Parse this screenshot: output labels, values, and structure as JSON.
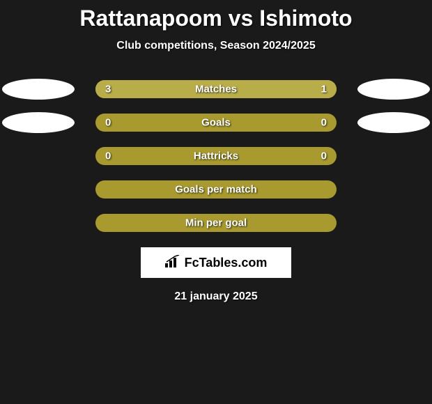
{
  "title": "Rattanapoom vs Ishimoto",
  "subtitle": "Club competitions, Season 2024/2025",
  "date": "21 january 2025",
  "logo_text": "FcTables.com",
  "colors": {
    "background": "#1a1a1a",
    "bar_base": "#a89a2e",
    "bar_fill": "#b9ad4a",
    "ellipse": "#ffffff",
    "text": "#ffffff",
    "logo_bg": "#ffffff",
    "logo_text": "#000000"
  },
  "stats": [
    {
      "label": "Matches",
      "left_value": "3",
      "right_value": "1",
      "left_pct": 75,
      "right_pct": 25,
      "show_left_ellipse": true,
      "show_right_ellipse": true,
      "show_values": true
    },
    {
      "label": "Goals",
      "left_value": "0",
      "right_value": "0",
      "left_pct": 0,
      "right_pct": 0,
      "show_left_ellipse": true,
      "show_right_ellipse": true,
      "show_values": true
    },
    {
      "label": "Hattricks",
      "left_value": "0",
      "right_value": "0",
      "left_pct": 0,
      "right_pct": 0,
      "show_left_ellipse": false,
      "show_right_ellipse": false,
      "show_values": true
    },
    {
      "label": "Goals per match",
      "left_value": "",
      "right_value": "",
      "left_pct": 0,
      "right_pct": 0,
      "show_left_ellipse": false,
      "show_right_ellipse": false,
      "show_values": false
    },
    {
      "label": "Min per goal",
      "left_value": "",
      "right_value": "",
      "left_pct": 0,
      "right_pct": 0,
      "show_left_ellipse": false,
      "show_right_ellipse": false,
      "show_values": false
    }
  ]
}
